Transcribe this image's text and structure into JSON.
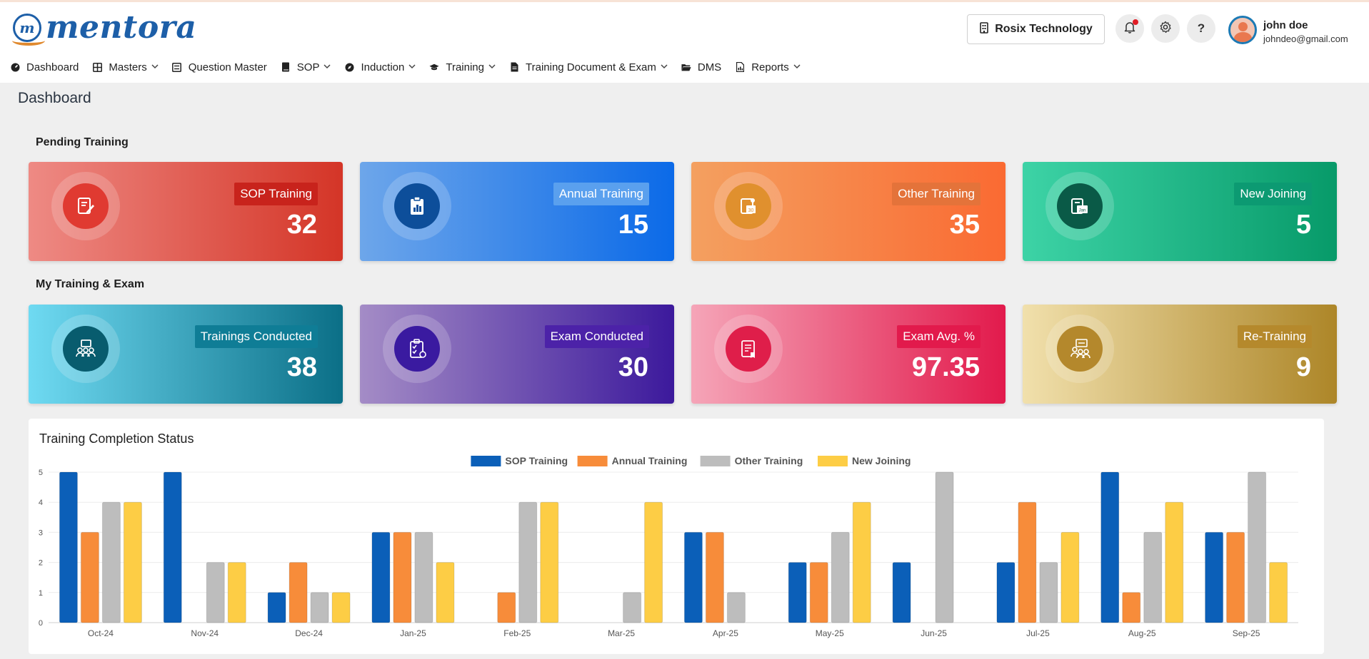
{
  "header": {
    "logo_text": "mentora",
    "logo_letter": "m",
    "company_label": "Rosix Technology",
    "user_name": "john doe",
    "user_email": "johndeo@gmail.com",
    "help_label": "?"
  },
  "nav": {
    "items": [
      {
        "label": "Dashboard",
        "icon": "dashboard-icon",
        "dropdown": false
      },
      {
        "label": "Masters",
        "icon": "grid-icon",
        "dropdown": true
      },
      {
        "label": "Question Master",
        "icon": "list-icon",
        "dropdown": false
      },
      {
        "label": "SOP",
        "icon": "book-icon",
        "dropdown": true
      },
      {
        "label": "Induction",
        "icon": "compass-icon",
        "dropdown": true
      },
      {
        "label": "Training",
        "icon": "graduation-cap-icon",
        "dropdown": true
      },
      {
        "label": "Training Document & Exam",
        "icon": "document-icon",
        "dropdown": true
      },
      {
        "label": "DMS",
        "icon": "folder-icon",
        "dropdown": false
      },
      {
        "label": "Reports",
        "icon": "report-icon",
        "dropdown": true
      }
    ]
  },
  "page": {
    "title": "Dashboard"
  },
  "pending": {
    "title": "Pending Training",
    "cards": [
      {
        "label": "SOP Training",
        "value": "32"
      },
      {
        "label": "Annual Training",
        "value": "15"
      },
      {
        "label": "Other Training",
        "value": "35"
      },
      {
        "label": "New Joining",
        "value": "5"
      }
    ]
  },
  "my_training": {
    "title": "My Training & Exam",
    "cards": [
      {
        "label": "Trainings Conducted",
        "value": "38"
      },
      {
        "label": "Exam Conducted",
        "value": "30"
      },
      {
        "label": "Exam Avg. %",
        "value": "97.35"
      },
      {
        "label": "Re-Training",
        "value": "9"
      }
    ]
  },
  "colors": {
    "sop": "#0b5fb8",
    "annual": "#f78c3a",
    "other": "#bdbdbd",
    "new_joining": "#fdcd45"
  },
  "chart_data": {
    "type": "bar",
    "title": "Training Completion Status",
    "categories": [
      "Oct-24",
      "Nov-24",
      "Dec-24",
      "Jan-25",
      "Feb-25",
      "Mar-25",
      "Apr-25",
      "May-25",
      "Jun-25",
      "Jul-25",
      "Aug-25",
      "Sep-25"
    ],
    "series": [
      {
        "name": "SOP Training",
        "color": "#0b5fb8",
        "values": [
          5,
          5,
          1,
          3,
          0,
          0,
          3,
          2,
          2,
          2,
          5,
          3
        ]
      },
      {
        "name": "Annual Training",
        "color": "#f78c3a",
        "values": [
          3,
          0,
          2,
          3,
          1,
          0,
          3,
          2,
          0,
          4,
          1,
          3
        ]
      },
      {
        "name": "Other Training",
        "color": "#bdbdbd",
        "values": [
          4,
          2,
          1,
          3,
          4,
          1,
          1,
          3,
          5,
          2,
          3,
          5
        ]
      },
      {
        "name": "New Joining",
        "color": "#fdcd45",
        "values": [
          4,
          2,
          1,
          2,
          4,
          4,
          0,
          4,
          0,
          3,
          4,
          2
        ]
      }
    ],
    "y_ticks": [
      "0",
      "1",
      "2",
      "3",
      "4",
      "5"
    ],
    "ylim": [
      0,
      5
    ],
    "grid": true,
    "legend_position": "top-center"
  }
}
